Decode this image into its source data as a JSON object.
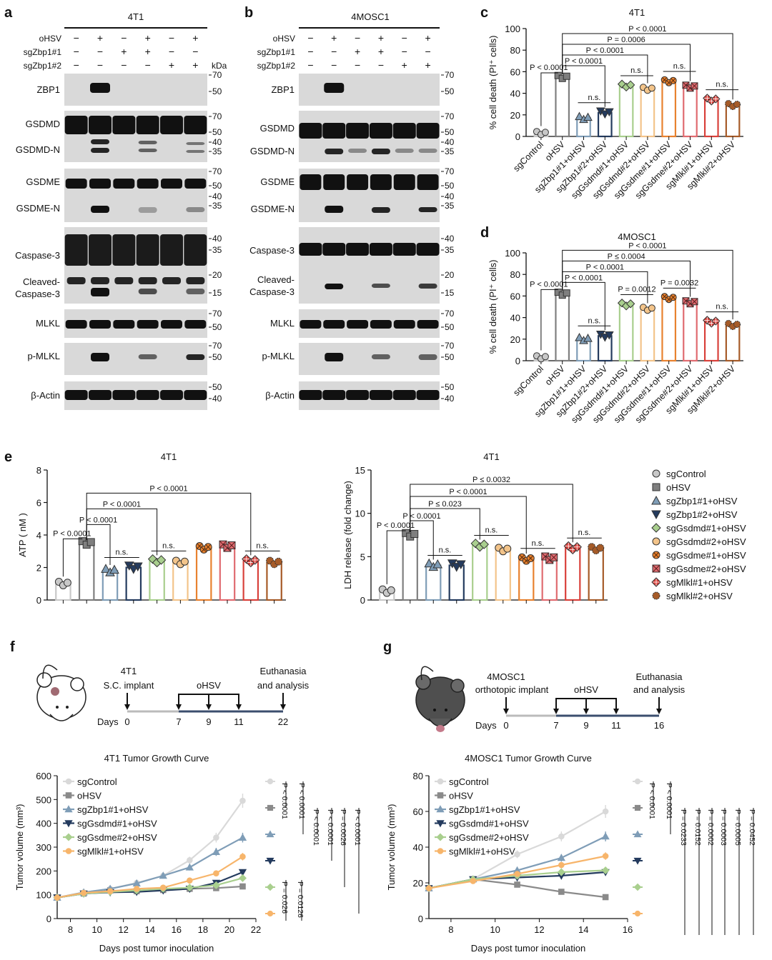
{
  "panels": {
    "a": {
      "label": "a",
      "title": "4T1"
    },
    "b": {
      "label": "b",
      "title": "4MOSC1"
    },
    "c": {
      "label": "c",
      "title": "4T1"
    },
    "d": {
      "label": "d",
      "title": "4MOSC1"
    },
    "e": {
      "label": "e"
    },
    "f": {
      "label": "f"
    },
    "g": {
      "label": "g"
    }
  },
  "blot": {
    "rows": [
      "oHSV",
      "sgZbp1#1",
      "sgZbp1#2"
    ],
    "kda": "kDa",
    "signs_a": [
      [
        "−",
        "+",
        "−",
        "+",
        "−",
        "+"
      ],
      [
        "−",
        "−",
        "+",
        "+",
        "−",
        "−"
      ],
      [
        "−",
        "−",
        "−",
        "−",
        "+",
        "+"
      ]
    ],
    "signs_b": [
      [
        "−",
        "+",
        "−",
        "+",
        "−",
        "+"
      ],
      [
        "−",
        "−",
        "+",
        "+",
        "−",
        "−"
      ],
      [
        "−",
        "−",
        "−",
        "−",
        "+",
        "+"
      ]
    ],
    "a_labels": [
      "ZBP1",
      "GSDMD",
      "GSDMD-N",
      "GSDME",
      "GSDME-N",
      "Caspase-3",
      "Cleaved-",
      "Caspase-3",
      "MLKL",
      "p-MLKL",
      "β-Actin"
    ],
    "b_labels": [
      "ZBP1",
      "GSDMD",
      "GSDMD-N",
      "GSDME",
      "GSDME-N",
      "Caspase-3",
      "Cleaved-",
      "Caspase-3",
      "MLKL",
      "p-MLKL",
      "β-Actin"
    ],
    "markers_a": [
      "70",
      "50",
      "70",
      "50",
      "40",
      "35",
      "70",
      "50",
      "40",
      "35",
      "40",
      "35",
      "20",
      "15",
      "70",
      "50",
      "70",
      "50",
      "50",
      "40"
    ],
    "markers_b": [
      "70",
      "50",
      "70",
      "50",
      "40",
      "35",
      "70",
      "50",
      "40",
      "35",
      "40",
      "35",
      "20",
      "15",
      "70",
      "50",
      "70",
      "50",
      "50",
      "40"
    ]
  },
  "groups_cd": [
    "sgControl",
    "oHSV",
    "sgZbp1#1+oHSV",
    "sgZbp1#2+oHSV",
    "sgGsdmd#1+oHSV",
    "sgGsdmd#2+oHSV",
    "sgGsdme#1+oHSV",
    "sgGsdme#2+oHSV",
    "sgMlkl#1+oHSV",
    "sgMlkl#2+oHSV"
  ],
  "legend_e": [
    "sgControl",
    "oHSV",
    "sgZbp1#1+oHSV",
    "sgZbp1#2+oHSV",
    "sgGsdmd#1+oHSV",
    "sgGsdmd#2+oHSV",
    "sgGsdme#1+oHSV",
    "sgGsdme#2+oHSV",
    "sgMlkl#1+oHSV",
    "sgMlkl#2+oHSV"
  ],
  "colors": [
    "#c8c8c8",
    "#7f7f7f",
    "#7f9db7",
    "#243b5e",
    "#a9cf8e",
    "#f3c48a",
    "#e8822f",
    "#e06b70",
    "#d9413b",
    "#a65b28"
  ],
  "chart_data": [
    {
      "id": "c",
      "type": "bar",
      "title": "4T1",
      "ylabel": "% cell death (PI⁺ cells)",
      "ylim": [
        0,
        100
      ],
      "yticks": [
        0,
        20,
        40,
        60,
        80,
        100
      ],
      "categories": [
        "sgControl",
        "oHSV",
        "sgZbp1#1+oHSV",
        "sgZbp1#2+oHSV",
        "sgGsdmd#1+oHSV",
        "sgGsdmd#2+oHSV",
        "sgGsdme#1+oHSV",
        "sgGsdme#2+oHSV",
        "sgMlkl#1+oHSV",
        "sgMlkl#2+oHSV"
      ],
      "values": [
        3,
        55,
        17,
        22,
        47,
        44,
        51,
        46,
        34,
        29
      ],
      "annotations": [
        {
          "from": 1,
          "to": 9,
          "text": "P < 0.0001"
        },
        {
          "from": 1,
          "to": 7,
          "text": "P = 0.0006"
        },
        {
          "from": 1,
          "to": 5,
          "text": "P < 0.0001"
        },
        {
          "from": 1,
          "to": 3,
          "text": "P < 0.0001"
        },
        {
          "from": 0,
          "to": 1,
          "text": "P < 0.0001"
        },
        {
          "from": 2,
          "to": 3,
          "text": "n.s."
        },
        {
          "from": 4,
          "to": 5,
          "text": "n.s."
        },
        {
          "from": 6,
          "to": 7,
          "text": "n.s."
        },
        {
          "from": 8,
          "to": 9,
          "text": "n.s."
        }
      ]
    },
    {
      "id": "d",
      "type": "bar",
      "title": "4MOSC1",
      "ylabel": "% cell death (PI⁺ cells)",
      "ylim": [
        0,
        100
      ],
      "yticks": [
        0,
        20,
        40,
        60,
        80,
        100
      ],
      "categories": [
        "sgControl",
        "oHSV",
        "sgZbp1#1+oHSV",
        "sgZbp1#2+oHSV",
        "sgGsdmd#1+oHSV",
        "sgGsdmd#2+oHSV",
        "sgGsdme#1+oHSV",
        "sgGsdme#2+oHSV",
        "sgMlkl#1+oHSV",
        "sgMlkl#2+oHSV"
      ],
      "values": [
        3,
        62,
        20,
        23,
        52,
        48,
        58,
        54,
        36,
        33
      ],
      "annotations": [
        {
          "from": 1,
          "to": 9,
          "text": "P < 0.0001"
        },
        {
          "from": 1,
          "to": 7,
          "text": "P ≤ 0.0004"
        },
        {
          "from": 1,
          "to": 5,
          "text": "P < 0.0001"
        },
        {
          "from": 1,
          "to": 3,
          "text": "P < 0.0001"
        },
        {
          "from": 0,
          "to": 1,
          "text": "P < 0.0001"
        },
        {
          "from": 2,
          "to": 3,
          "text": "n.s."
        },
        {
          "from": 4,
          "to": 5,
          "text": "P = 0.0012"
        },
        {
          "from": 6,
          "to": 7,
          "text": "P = 0.0032"
        },
        {
          "from": 8,
          "to": 9,
          "text": "n.s."
        }
      ]
    },
    {
      "id": "e1",
      "type": "bar",
      "title": "4T1",
      "ylabel": "ATP ( nM )",
      "ylim": [
        0,
        8
      ],
      "yticks": [
        0,
        2,
        4,
        6,
        8
      ],
      "categories": [
        "sgControl",
        "oHSV",
        "sgZbp1#1+oHSV",
        "sgZbp1#2+oHSV",
        "sgGsdmd#1+oHSV",
        "sgGsdmd#2+oHSV",
        "sgGsdme#1+oHSV",
        "sgGsdme#2+oHSV",
        "sgMlkl#1+oHSV",
        "sgMlkl#2+oHSV"
      ],
      "values": [
        1.0,
        3.5,
        1.8,
        2.0,
        2.4,
        2.3,
        3.2,
        3.3,
        2.4,
        2.3
      ],
      "annotations": [
        {
          "from": 1,
          "to": 8,
          "text": "P < 0.0001"
        },
        {
          "from": 1,
          "to": 4,
          "text": "P < 0.0001"
        },
        {
          "from": 1,
          "to": 2,
          "text": "P < 0.0001"
        },
        {
          "from": 0,
          "to": 1,
          "text": "P < 0.0001"
        },
        {
          "from": 2,
          "to": 3,
          "text": "n.s."
        },
        {
          "from": 4,
          "to": 5,
          "text": "n.s."
        },
        {
          "from": 8,
          "to": 9,
          "text": "n.s."
        }
      ]
    },
    {
      "id": "e2",
      "type": "bar",
      "title": "4T1",
      "ylabel": "LDH release (fold change)",
      "ylim": [
        0,
        15
      ],
      "yticks": [
        0,
        5,
        10,
        15
      ],
      "categories": [
        "sgControl",
        "oHSV",
        "sgZbp1#1+oHSV",
        "sgZbp1#2+oHSV",
        "sgGsdmd#1+oHSV",
        "sgGsdmd#2+oHSV",
        "sgGsdme#1+oHSV",
        "sgGsdme#2+oHSV",
        "sgMlkl#1+oHSV",
        "sgMlkl#2+oHSV"
      ],
      "values": [
        1.0,
        7.5,
        4.0,
        4.0,
        6.3,
        5.8,
        4.7,
        4.8,
        6.0,
        5.9
      ],
      "annotations": [
        {
          "from": 1,
          "to": 8,
          "text": "P ≤ 0.0032"
        },
        {
          "from": 1,
          "to": 6,
          "text": "P < 0.0001"
        },
        {
          "from": 1,
          "to": 4,
          "text": "P ≤ 0.023"
        },
        {
          "from": 1,
          "to": 2,
          "text": "P < 0.0001"
        },
        {
          "from": 0,
          "to": 1,
          "text": "P < 0.0001"
        },
        {
          "from": 2,
          "to": 3,
          "text": "n.s."
        },
        {
          "from": 4,
          "to": 5,
          "text": "n.s."
        },
        {
          "from": 6,
          "to": 7,
          "text": "n.s."
        },
        {
          "from": 8,
          "to": 9,
          "text": "n.s."
        }
      ]
    },
    {
      "id": "f",
      "type": "line",
      "title": "4T1 Tumor Growth Curve",
      "xlabel": "Days post tumor inoculation",
      "ylabel": "Tumor volume (mm³)",
      "xlim": [
        7,
        22
      ],
      "ylim": [
        0,
        600
      ],
      "xticks": [
        8,
        10,
        12,
        14,
        16,
        18,
        20,
        22
      ],
      "yticks": [
        0,
        100,
        200,
        300,
        400,
        500,
        600
      ],
      "x": [
        7,
        9,
        11,
        13,
        15,
        17,
        19,
        21
      ],
      "series": [
        {
          "name": "sgControl",
          "color": "#d9d9d9",
          "marker": "circle",
          "values": [
            88,
            110,
            125,
            150,
            180,
            245,
            340,
            495
          ]
        },
        {
          "name": "oHSV",
          "color": "#8a8a8a",
          "marker": "square",
          "values": [
            88,
            105,
            118,
            115,
            120,
            125,
            128,
            135
          ]
        },
        {
          "name": "sgZbp1#1+oHSV",
          "color": "#7f9db7",
          "marker": "triangle",
          "values": [
            88,
            110,
            125,
            148,
            180,
            215,
            280,
            340
          ]
        },
        {
          "name": "sgGsdmd#1+oHSV",
          "color": "#243b5e",
          "marker": "invtriangle",
          "values": [
            88,
            105,
            110,
            112,
            118,
            125,
            150,
            195
          ]
        },
        {
          "name": "sgGsdme#2+oHSV",
          "color": "#a9cf8e",
          "marker": "diamond",
          "values": [
            88,
            105,
            112,
            118,
            125,
            130,
            140,
            170
          ]
        },
        {
          "name": "sgMlkl#1+oHSV",
          "color": "#f7b56b",
          "marker": "circle",
          "values": [
            88,
            108,
            115,
            125,
            130,
            160,
            190,
            260
          ]
        }
      ],
      "pvalues": [
        "P < 0.0001",
        "P < 0.0001",
        "P < 0.0001",
        "P < 0.0001",
        "P = 0.0026",
        "P < 0.0001",
        "P = 0.026",
        "P = 0.0126"
      ]
    },
    {
      "id": "g",
      "type": "line",
      "title": "4MOSC1 Tumor Growth Curve",
      "xlabel": "Days post tumor inoculation",
      "ylabel": "Tumor volume (mm³)",
      "xlim": [
        7,
        16
      ],
      "ylim": [
        0,
        80
      ],
      "xticks": [
        8,
        10,
        12,
        14,
        16
      ],
      "yticks": [
        0,
        20,
        40,
        60,
        80
      ],
      "x": [
        7,
        9,
        11,
        13,
        15
      ],
      "series": [
        {
          "name": "sgControl",
          "color": "#d9d9d9",
          "marker": "circle",
          "values": [
            17,
            22,
            36,
            46,
            60
          ]
        },
        {
          "name": "oHSV",
          "color": "#8a8a8a",
          "marker": "square",
          "values": [
            17,
            22,
            19,
            15,
            12
          ]
        },
        {
          "name": "sgZbp1#1+oHSV",
          "color": "#7f9db7",
          "marker": "triangle",
          "values": [
            17,
            22,
            27,
            34,
            46
          ]
        },
        {
          "name": "sgGsdmd#1+oHSV",
          "color": "#243b5e",
          "marker": "invtriangle",
          "values": [
            17,
            22,
            23,
            24,
            26
          ]
        },
        {
          "name": "sgGsdme#2+oHSV",
          "color": "#a9cf8e",
          "marker": "diamond",
          "values": [
            17,
            22,
            24,
            26,
            27
          ]
        },
        {
          "name": "sgMlkl#1+oHSV",
          "color": "#f7b56b",
          "marker": "circle",
          "values": [
            17,
            21,
            25,
            30,
            35
          ]
        }
      ],
      "pvalues": [
        "P < 0.0001",
        "P < 0.0001",
        "P = 0.0233",
        "P = 0.0152",
        "P = 0.0002",
        "P = 0.0003",
        "P = 0.0005",
        "P = 0.0452"
      ]
    }
  ],
  "schematic_f": {
    "cell": "4T1",
    "implant": "S.C. implant",
    "virus": "oHSV",
    "end1": "Euthanasia",
    "end2": "and analysis",
    "days_label": "Days",
    "days": [
      "0",
      "7",
      "9",
      "11",
      "22"
    ]
  },
  "schematic_g": {
    "cell": "4MOSC1",
    "implant": "orthotopic implant",
    "virus": "oHSV",
    "end1": "Euthanasia",
    "end2": "and analysis",
    "days_label": "Days",
    "days": [
      "0",
      "7",
      "9",
      "11",
      "16"
    ]
  }
}
